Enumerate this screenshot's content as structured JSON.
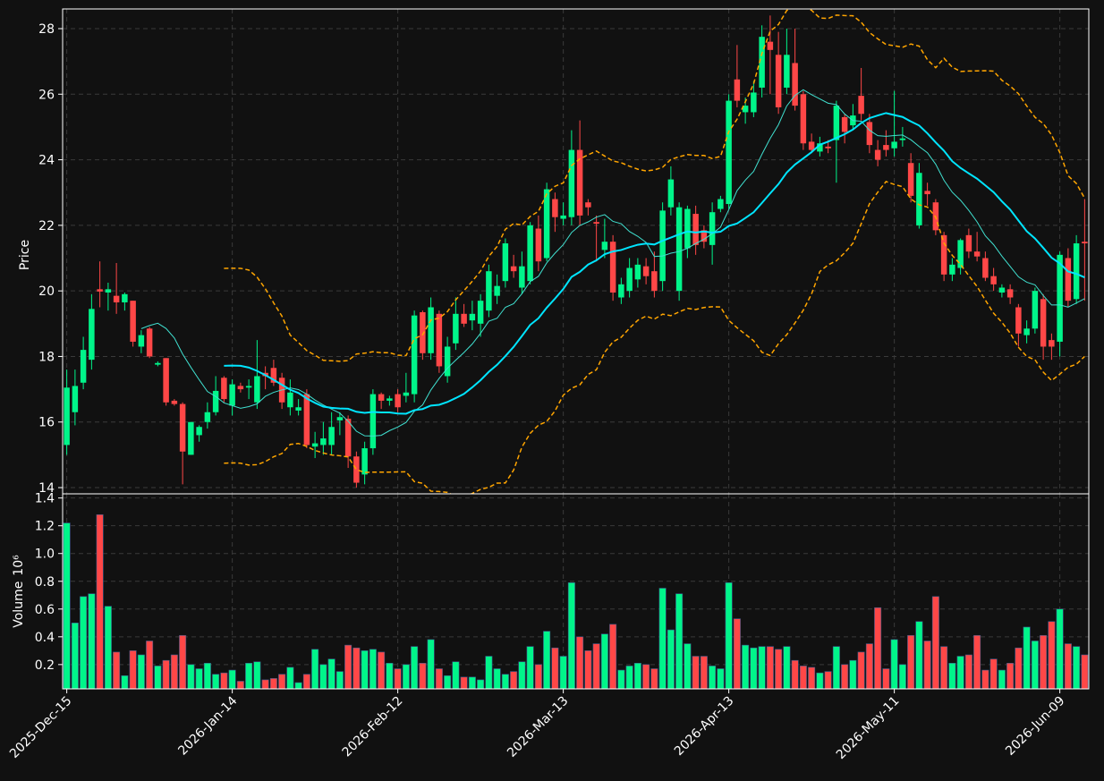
{
  "chart_data": [
    {
      "type": "candlestick",
      "ylabel": "Price",
      "grid": true,
      "xlim": [
        -0.5,
        123.5
      ],
      "ylim": [
        13.81,
        28.6
      ],
      "yticks": [
        14,
        16,
        18,
        20,
        22,
        24,
        26,
        28
      ],
      "up_color": "#00f58a",
      "down_color": "#ff4747",
      "moving_averages": [
        {
          "period": 10,
          "color": "#40e0d0",
          "width": 1
        },
        {
          "period": 20,
          "color": "#00e5ff",
          "width": 2
        }
      ],
      "bollinger": {
        "period": 20,
        "std": 2,
        "color": "#ffa500"
      },
      "open": [
        15.3,
        16.3,
        17.2,
        17.9,
        20.05,
        19.95,
        19.85,
        19.65,
        19.7,
        18.3,
        18.85,
        17.75,
        17.95,
        16.65,
        16.55,
        15.0,
        15.6,
        16.0,
        16.3,
        17.35,
        16.5,
        17.1,
        17.05,
        16.6,
        17.5,
        17.65,
        17.35,
        16.45,
        16.35,
        16.85,
        15.25,
        15.3,
        15.3,
        16.05,
        16.1,
        14.95,
        14.4,
        15.2,
        16.85,
        16.65,
        16.85,
        16.8,
        16.85,
        19.35,
        18.1,
        19.3,
        17.4,
        18.4,
        19.3,
        19.1,
        19.0,
        19.4,
        19.85,
        20.3,
        20.75,
        20.1,
        20.3,
        21.9,
        21.0,
        22.8,
        22.2,
        22.25,
        24.3,
        22.7,
        22.1,
        21.25,
        21.5,
        19.8,
        20.0,
        20.35,
        20.75,
        20.6,
        20.3,
        22.55,
        20.0,
        21.3,
        22.35,
        21.85,
        21.4,
        22.5,
        22.65,
        26.45,
        25.45,
        25.45,
        26.2,
        27.6,
        27.2,
        26.2,
        26.95,
        26.0,
        24.55,
        24.25,
        24.4,
        24.6,
        25.3,
        25.05,
        25.95,
        25.15,
        24.3,
        24.45,
        24.35,
        24.6,
        23.9,
        22.0,
        23.05,
        22.7,
        21.7,
        20.5,
        20.7,
        21.7,
        21.2,
        21.0,
        20.45,
        19.95,
        20.05,
        19.5,
        18.65,
        18.85,
        19.75,
        18.5,
        18.45,
        21.0,
        19.75,
        21.5
      ],
      "high": [
        17.6,
        17.6,
        18.6,
        19.9,
        20.9,
        20.25,
        20.85,
        19.95,
        19.7,
        18.8,
        18.9,
        17.85,
        17.95,
        16.7,
        16.6,
        16.0,
        15.9,
        16.6,
        17.4,
        17.4,
        17.3,
        17.2,
        17.3,
        18.5,
        17.7,
        17.9,
        17.5,
        17.3,
        16.7,
        17.0,
        15.7,
        16.0,
        16.3,
        16.3,
        16.2,
        15.1,
        15.4,
        17.0,
        16.9,
        16.8,
        17.0,
        17.5,
        19.4,
        19.4,
        19.8,
        19.4,
        18.6,
        19.8,
        19.6,
        19.7,
        19.9,
        20.8,
        20.5,
        21.6,
        21.1,
        21.2,
        22.1,
        22.3,
        23.3,
        23.0,
        22.7,
        24.9,
        25.2,
        22.8,
        22.3,
        22.2,
        21.7,
        20.4,
        21.0,
        21.0,
        21.0,
        21.2,
        22.7,
        23.8,
        22.7,
        22.6,
        22.6,
        22.0,
        22.7,
        22.9,
        26.0,
        27.5,
        25.9,
        26.4,
        28.1,
        28.4,
        27.9,
        28.0,
        28.0,
        26.1,
        24.8,
        24.7,
        24.6,
        25.8,
        25.4,
        25.7,
        26.8,
        25.4,
        24.6,
        24.9,
        26.1,
        25.0,
        24.2,
        23.9,
        23.3,
        22.8,
        21.8,
        21.0,
        21.6,
        21.9,
        21.8,
        21.2,
        20.7,
        20.2,
        20.2,
        19.6,
        19.1,
        20.1,
        19.9,
        18.7,
        21.2,
        21.3,
        21.7,
        22.8
      ],
      "low": [
        15.0,
        15.9,
        17.0,
        17.6,
        19.5,
        19.4,
        19.3,
        19.4,
        18.3,
        18.1,
        17.95,
        17.7,
        16.5,
        16.5,
        14.1,
        15.0,
        15.4,
        15.8,
        16.2,
        16.6,
        16.2,
        16.9,
        16.7,
        16.4,
        17.0,
        17.1,
        16.4,
        16.2,
        16.2,
        15.2,
        14.9,
        15.0,
        15.0,
        15.6,
        14.6,
        14.0,
        14.1,
        15.0,
        16.4,
        16.5,
        16.3,
        16.6,
        16.6,
        17.9,
        17.9,
        17.5,
        17.2,
        18.2,
        18.9,
        18.8,
        18.6,
        19.2,
        19.6,
        20.1,
        20.4,
        19.9,
        20.2,
        20.6,
        20.9,
        21.8,
        22.0,
        22.0,
        22.0,
        22.3,
        20.9,
        21.0,
        19.7,
        19.6,
        19.8,
        20.1,
        20.2,
        19.8,
        20.0,
        22.3,
        19.7,
        21.0,
        21.1,
        21.3,
        20.8,
        22.4,
        22.5,
        25.6,
        25.1,
        25.3,
        25.9,
        26.0,
        25.4,
        26.0,
        25.5,
        24.3,
        24.2,
        24.1,
        24.2,
        23.3,
        24.5,
        24.9,
        25.2,
        24.2,
        23.8,
        24.1,
        24.1,
        24.4,
        22.7,
        21.9,
        22.6,
        21.7,
        20.3,
        20.3,
        20.5,
        21.0,
        20.9,
        20.3,
        20.0,
        19.8,
        19.6,
        18.3,
        18.4,
        18.7,
        17.9,
        17.9,
        18.0,
        19.5,
        19.6,
        19.7
      ],
      "close": [
        17.05,
        17.1,
        18.2,
        19.45,
        19.98,
        20.05,
        19.65,
        19.9,
        18.45,
        18.65,
        18.0,
        17.8,
        16.6,
        16.55,
        15.1,
        16.0,
        15.85,
        16.3,
        16.95,
        16.7,
        17.15,
        17.0,
        17.1,
        17.4,
        17.4,
        17.2,
        16.6,
        16.9,
        16.45,
        15.3,
        15.35,
        15.5,
        15.85,
        16.15,
        14.95,
        14.15,
        15.2,
        16.85,
        16.65,
        16.72,
        16.45,
        16.9,
        19.25,
        18.1,
        19.5,
        17.7,
        18.3,
        19.3,
        19.0,
        19.3,
        19.7,
        20.6,
        20.15,
        21.45,
        20.6,
        20.75,
        22.0,
        20.9,
        23.1,
        22.25,
        22.3,
        24.3,
        22.3,
        22.55,
        22.05,
        21.5,
        19.95,
        20.2,
        20.7,
        20.8,
        20.45,
        20.0,
        22.45,
        23.4,
        22.55,
        22.5,
        21.4,
        21.5,
        22.4,
        22.8,
        25.8,
        25.8,
        25.65,
        26.05,
        27.75,
        27.35,
        25.6,
        27.2,
        25.65,
        24.5,
        24.3,
        24.5,
        24.35,
        25.65,
        24.85,
        25.35,
        25.4,
        24.45,
        24.0,
        24.3,
        24.55,
        24.65,
        22.9,
        23.6,
        22.95,
        21.85,
        20.5,
        20.8,
        21.55,
        21.2,
        21.05,
        20.4,
        20.2,
        20.1,
        19.8,
        18.7,
        18.85,
        20.0,
        18.3,
        18.3,
        21.1,
        19.7,
        21.45,
        21.45
      ]
    },
    {
      "type": "bar",
      "ylabel": "Volume",
      "ylabel_scale": "10⁶",
      "grid": true,
      "xlim": [
        -0.5,
        123.5
      ],
      "ylim": [
        0.025,
        1.43
      ],
      "yticks": [
        0.2,
        0.4,
        0.6,
        0.8,
        {
          "value": 1.0,
          "label": "1.0"
        },
        1.2,
        1.4
      ],
      "xticks": [
        {
          "value": 0,
          "label": "2025-Dec-15"
        },
        {
          "value": 20,
          "label": "2026-Jan-14"
        },
        {
          "value": 40,
          "label": "2026-Feb-12"
        },
        {
          "value": 60,
          "label": "2026-Mar-13"
        },
        {
          "value": 80,
          "label": "2026-Apr-13"
        },
        {
          "value": 100,
          "label": "2026-May-11"
        },
        {
          "value": 120,
          "label": "2026-Jun-09"
        }
      ],
      "values": [
        1.22,
        0.5,
        0.69,
        0.71,
        1.28,
        0.62,
        0.29,
        0.12,
        0.3,
        0.27,
        0.37,
        0.19,
        0.23,
        0.27,
        0.41,
        0.2,
        0.17,
        0.21,
        0.13,
        0.14,
        0.16,
        0.08,
        0.21,
        0.22,
        0.09,
        0.1,
        0.13,
        0.18,
        0.07,
        0.13,
        0.31,
        0.2,
        0.24,
        0.15,
        0.34,
        0.32,
        0.3,
        0.31,
        0.29,
        0.21,
        0.17,
        0.2,
        0.33,
        0.21,
        0.38,
        0.17,
        0.12,
        0.22,
        0.11,
        0.11,
        0.09,
        0.26,
        0.17,
        0.13,
        0.15,
        0.22,
        0.33,
        0.2,
        0.44,
        0.32,
        0.26,
        0.79,
        0.4,
        0.3,
        0.35,
        0.42,
        0.49,
        0.16,
        0.19,
        0.21,
        0.2,
        0.17,
        0.75,
        0.45,
        0.71,
        0.35,
        0.26,
        0.26,
        0.19,
        0.17,
        0.79,
        0.53,
        0.34,
        0.32,
        0.33,
        0.33,
        0.31,
        0.33,
        0.23,
        0.19,
        0.18,
        0.14,
        0.15,
        0.33,
        0.2,
        0.23,
        0.29,
        0.35,
        0.61,
        0.17,
        0.38,
        0.2,
        0.41,
        0.51,
        0.37,
        0.69,
        0.33,
        0.21,
        0.26,
        0.27,
        0.41,
        0.16,
        0.24,
        0.16,
        0.21,
        0.32,
        0.47,
        0.37,
        0.41,
        0.51,
        0.6,
        0.35,
        0.33,
        0.27
      ]
    }
  ]
}
